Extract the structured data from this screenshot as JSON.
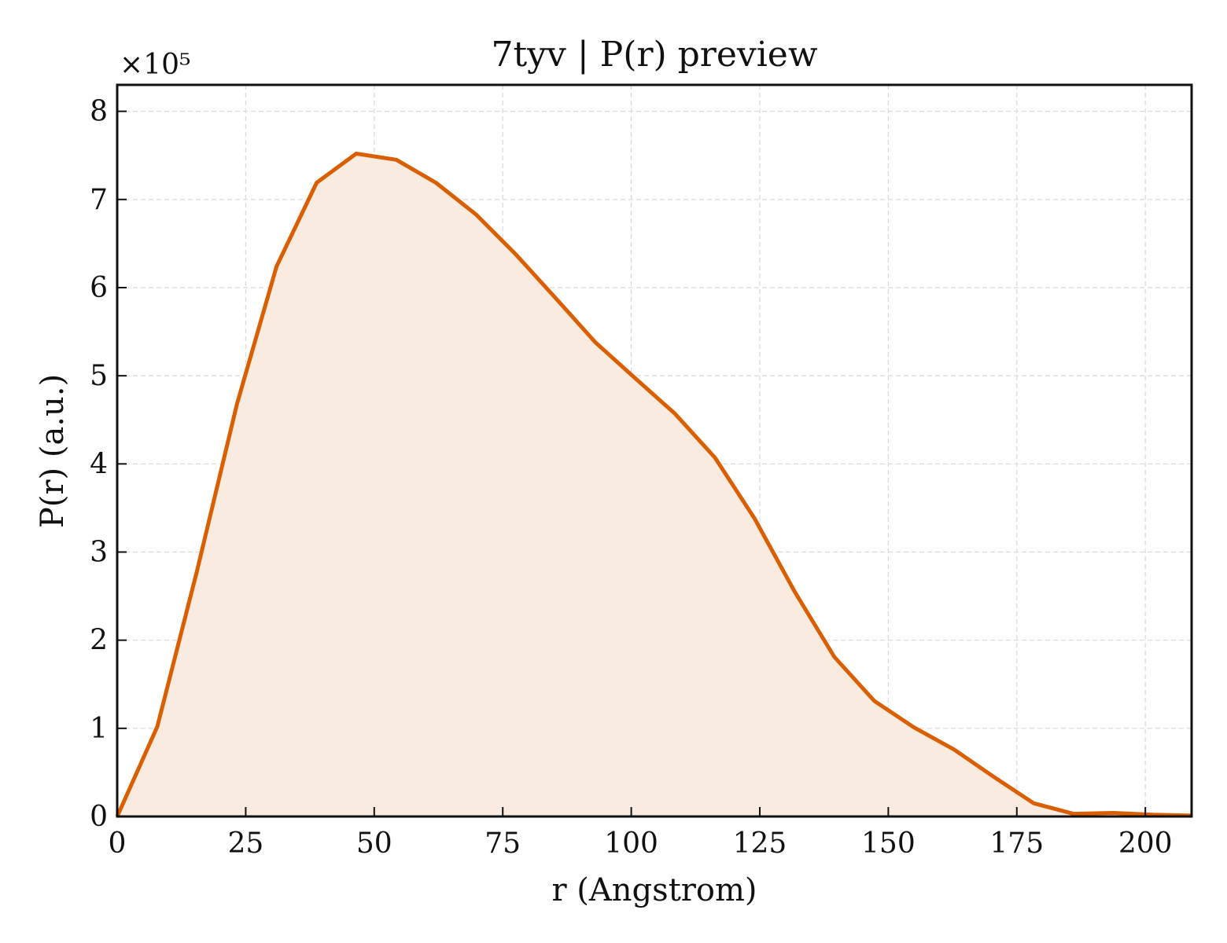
{
  "chart_data": {
    "type": "area",
    "title": "7tyv | P(r) preview",
    "xlabel": "r (Angstrom)",
    "ylabel": "P(r) (a.u.)",
    "y_multiplier_label": "×10⁵",
    "y_scale": 100000,
    "xlim": [
      0,
      209
    ],
    "ylim": [
      0,
      8.3
    ],
    "x_ticks": [
      0,
      25,
      50,
      75,
      100,
      125,
      150,
      175,
      200
    ],
    "y_ticks": [
      0,
      1,
      2,
      3,
      4,
      5,
      6,
      7,
      8
    ],
    "grid": true,
    "line_color": "#d95f02",
    "fill_color": "#f9ebe0",
    "series": [
      {
        "x": [
          0,
          7.8,
          15.5,
          23.3,
          31.0,
          38.8,
          46.5,
          54.3,
          62.0,
          69.8,
          77.5,
          85.3,
          93.0,
          100.8,
          108.5,
          116.3,
          124.0,
          131.8,
          139.5,
          147.3,
          155.0,
          162.8,
          170.5,
          178.3,
          186.0,
          193.8,
          201.5,
          209.0
        ],
        "y": [
          0,
          1.02,
          2.78,
          4.68,
          6.24,
          7.19,
          7.52,
          7.45,
          7.19,
          6.83,
          6.38,
          5.88,
          5.38,
          4.97,
          4.57,
          4.07,
          3.38,
          2.55,
          1.81,
          1.31,
          1.01,
          0.76,
          0.45,
          0.15,
          0.03,
          0.04,
          0.02,
          0.01
        ]
      }
    ]
  }
}
